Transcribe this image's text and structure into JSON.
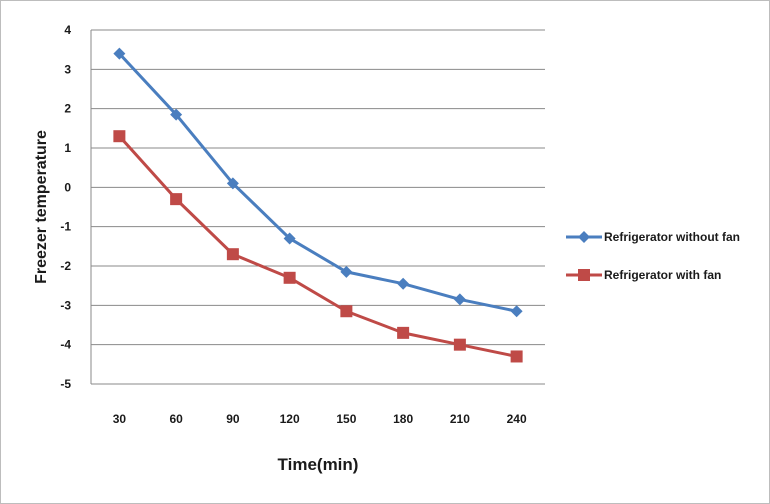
{
  "chart_data": {
    "type": "line",
    "x": [
      30,
      60,
      90,
      120,
      150,
      180,
      210,
      240
    ],
    "xlabel": "Time(min)",
    "ylabel": "Freezer temperature",
    "ylim": [
      -5,
      4
    ],
    "yticks": [
      4,
      3,
      2,
      1,
      0,
      -1,
      -2,
      -3,
      -4,
      -5
    ],
    "grid": "horizontal",
    "legend": "right",
    "series": [
      {
        "name": "Refrigerator without fan",
        "color": "#4a7ebf",
        "marker": "diamond",
        "values": [
          3.4,
          1.85,
          0.1,
          -1.3,
          -2.15,
          -2.45,
          -2.85,
          -3.15
        ]
      },
      {
        "name": "Refrigerator with fan",
        "color": "#bf4a47",
        "marker": "square",
        "values": [
          1.3,
          -0.3,
          -1.7,
          -2.3,
          -3.15,
          -3.7,
          -4.0,
          -4.3
        ]
      }
    ]
  }
}
